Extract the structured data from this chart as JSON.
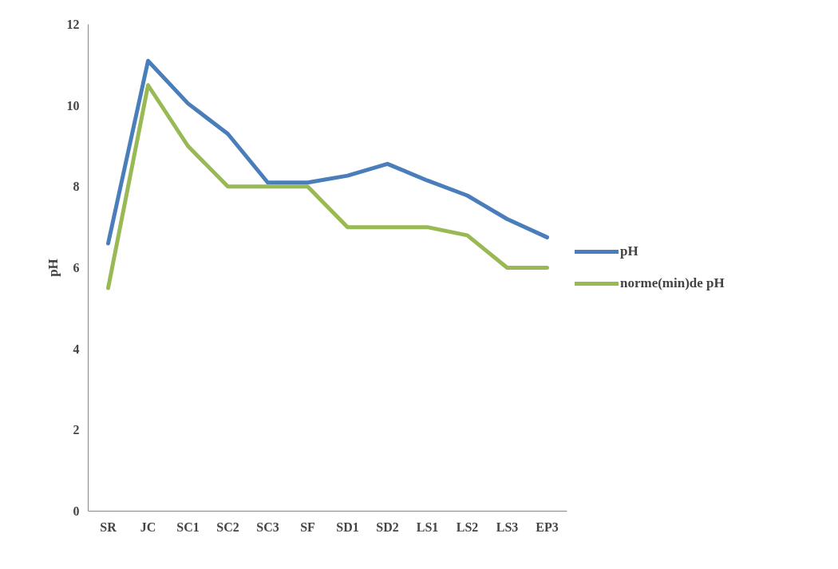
{
  "chart_data": {
    "type": "line",
    "ylabel": "pH",
    "categories": [
      "SR",
      "JC",
      "SC1",
      "SC2",
      "SC3",
      "SF",
      "SD1",
      "SD2",
      "LS1",
      "LS2",
      "LS3",
      "EP3"
    ],
    "series": [
      {
        "name": "pH",
        "color": "#4a7ebb",
        "values": [
          6.6,
          11.1,
          10.05,
          9.3,
          8.1,
          8.1,
          8.27,
          8.56,
          8.15,
          7.78,
          7.2,
          6.75
        ]
      },
      {
        "name": "norme(min)de pH",
        "color": "#98b954",
        "values": [
          5.5,
          10.5,
          9,
          8,
          8,
          8,
          7,
          7,
          7,
          6.8,
          6,
          6
        ]
      }
    ],
    "ylim": [
      0,
      12
    ],
    "yticks": [
      0,
      2,
      4,
      6,
      8,
      10,
      12
    ],
    "grid": false,
    "legend": "right",
    "marker": "none",
    "line_style": "solid"
  }
}
